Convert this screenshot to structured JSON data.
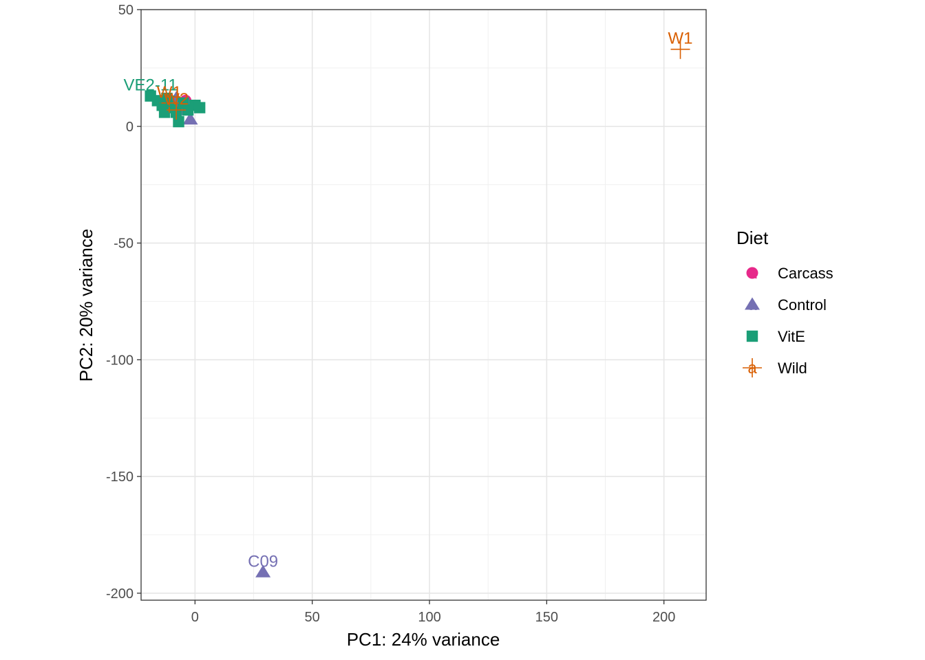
{
  "chart_data": {
    "type": "scatter",
    "xlabel": "PC1: 24% variance",
    "ylabel": "PC2: 20% variance",
    "xlim": [
      -23,
      218
    ],
    "ylim": [
      -203,
      50
    ],
    "x_ticks": [
      0,
      50,
      100,
      150,
      200
    ],
    "y_ticks": [
      50,
      0,
      -50,
      -100,
      -150,
      -200
    ],
    "grid": true,
    "legend": {
      "title": "Diet",
      "position": "right",
      "glyph_text": "a",
      "entries": [
        {
          "name": "Carcass",
          "color": "#E7298A",
          "shape": "circle"
        },
        {
          "name": "Control",
          "color": "#7570B3",
          "shape": "triangle"
        },
        {
          "name": "VitE",
          "color": "#1B9E77",
          "shape": "square"
        },
        {
          "name": "Wild",
          "color": "#D95F02",
          "shape": "plus"
        }
      ]
    },
    "series": [
      {
        "name": "Carcass",
        "points": [
          {
            "x": -9,
            "y": 10,
            "label": ""
          },
          {
            "x": -6,
            "y": 8,
            "label": ""
          },
          {
            "x": -4,
            "y": 11,
            "label": ""
          }
        ]
      },
      {
        "name": "Control",
        "points": [
          {
            "x": -2,
            "y": 3,
            "label": ""
          },
          {
            "x": -5,
            "y": 7,
            "label": ""
          },
          {
            "x": -8,
            "y": 12,
            "label": ""
          },
          {
            "x": -3,
            "y": 9,
            "label": ""
          },
          {
            "x": 29,
            "y": -191,
            "label": "C09"
          }
        ]
      },
      {
        "name": "VitE",
        "points": [
          {
            "x": -19,
            "y": 13,
            "label": "VE2-11"
          },
          {
            "x": -16,
            "y": 11,
            "label": ""
          },
          {
            "x": -14,
            "y": 9,
            "label": ""
          },
          {
            "x": -12,
            "y": 12,
            "label": ""
          },
          {
            "x": -10,
            "y": 8,
            "label": ""
          },
          {
            "x": -8,
            "y": 6,
            "label": ""
          },
          {
            "x": -7,
            "y": 2,
            "label": ""
          },
          {
            "x": -5,
            "y": 10,
            "label": ""
          },
          {
            "x": -3,
            "y": 7,
            "label": ""
          },
          {
            "x": 0,
            "y": 9,
            "label": ""
          },
          {
            "x": 2,
            "y": 8,
            "label": ""
          },
          {
            "x": -13,
            "y": 6,
            "label": "VE"
          }
        ]
      },
      {
        "name": "Wild",
        "points": [
          {
            "x": -11,
            "y": 10,
            "label": "W1"
          },
          {
            "x": -8,
            "y": 7,
            "label": "W2"
          },
          {
            "x": 207,
            "y": 33,
            "label": "W1"
          }
        ]
      }
    ]
  }
}
